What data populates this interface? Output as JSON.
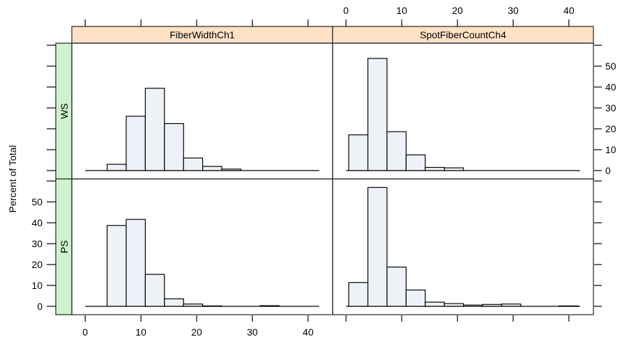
{
  "chart_data": {
    "type": "bar",
    "subtype": "histogram-lattice",
    "ylabel": "Percent of Total",
    "xlim": [
      -2.4,
      44.4
    ],
    "ylim": [
      -4,
      61
    ],
    "x_ticks": [
      0,
      10,
      20,
      30,
      40
    ],
    "y_ticks": [
      0,
      10,
      20,
      30,
      40,
      50
    ],
    "breaks": [
      0.5,
      3.93,
      7.36,
      10.79,
      14.22,
      17.65,
      21.08,
      24.51,
      27.94,
      31.37,
      34.8,
      38.23,
      41.66
    ],
    "colors": {
      "bar_fill": "#eef2f8",
      "strip_top": "#ffe2c6",
      "strip_side": "#cdf2cd",
      "line": "#000000"
    },
    "columns": [
      "FiberWidthCh1",
      "SpotFiberCountCh4"
    ],
    "rows": [
      "WS",
      "PS"
    ],
    "panels": [
      {
        "row": "WS",
        "column": "FiberWidthCh1",
        "values": [
          0,
          3,
          26,
          39.4,
          22.5,
          6,
          2,
          0.7,
          0,
          0,
          0,
          0
        ]
      },
      {
        "row": "WS",
        "column": "SpotFiberCountCh4",
        "values": [
          17.1,
          53.7,
          18.6,
          7.5,
          1.5,
          1.3,
          0,
          0,
          0,
          0,
          0,
          0
        ]
      },
      {
        "row": "PS",
        "column": "FiberWidthCh1",
        "values": [
          0,
          38.7,
          41.6,
          15.3,
          3.6,
          1.1,
          0.2,
          0,
          0,
          0.3,
          0,
          0
        ]
      },
      {
        "row": "PS",
        "column": "SpotFiberCountCh4",
        "values": [
          11.4,
          56.9,
          18.8,
          7.8,
          2,
          1.3,
          0.6,
          0.9,
          1.1,
          0,
          0,
          0.2
        ]
      }
    ]
  }
}
